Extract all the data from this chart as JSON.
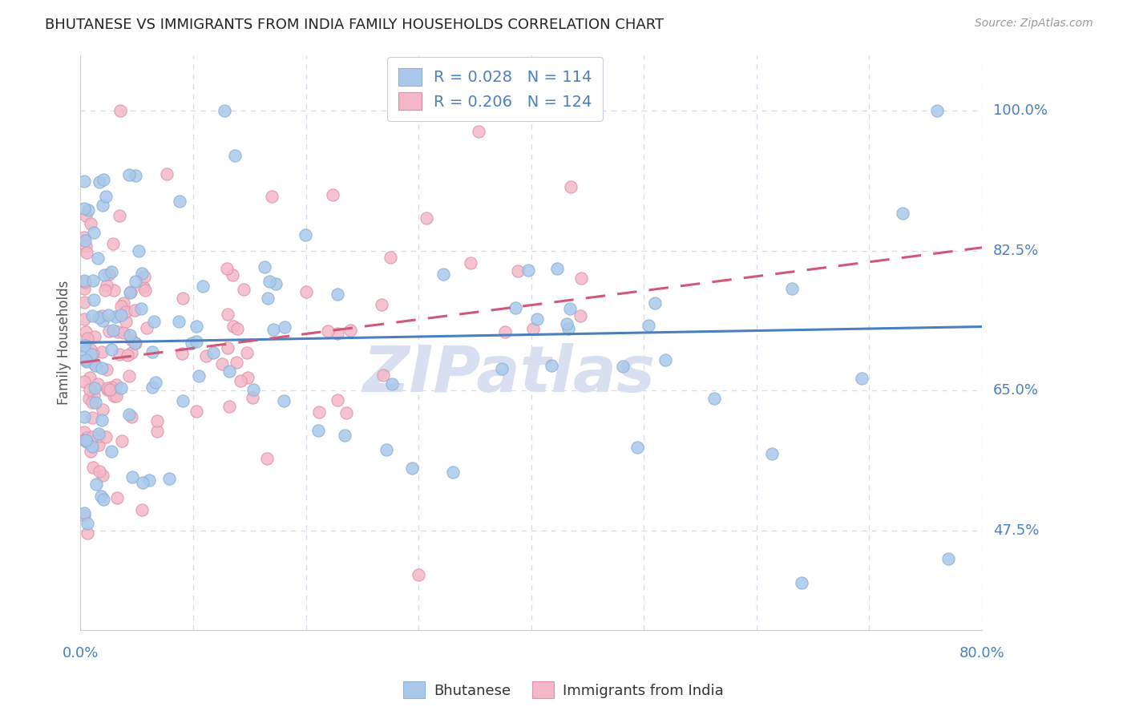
{
  "title": "BHUTANESE VS IMMIGRANTS FROM INDIA FAMILY HOUSEHOLDS CORRELATION CHART",
  "source": "Source: ZipAtlas.com",
  "ylabel": "Family Households",
  "yticks": [
    47.5,
    65.0,
    82.5,
    100.0
  ],
  "xlim": [
    0.0,
    80.0
  ],
  "ylim": [
    35.0,
    107.0
  ],
  "blue_R": 0.028,
  "blue_N": 114,
  "pink_R": 0.206,
  "pink_N": 124,
  "blue_color": "#aac9ea",
  "pink_color": "#f4b8c8",
  "blue_edge_color": "#88b0d8",
  "pink_edge_color": "#e090a8",
  "blue_line_color": "#4a7fc0",
  "pink_line_color": "#d05878",
  "watermark": "ZIPatlas",
  "watermark_color": "#d8dff0",
  "background_color": "#ffffff",
  "grid_color": "#d8d8e8",
  "blue_intercept": 71.0,
  "blue_slope": 0.025,
  "pink_intercept": 68.5,
  "pink_slope": 0.18
}
